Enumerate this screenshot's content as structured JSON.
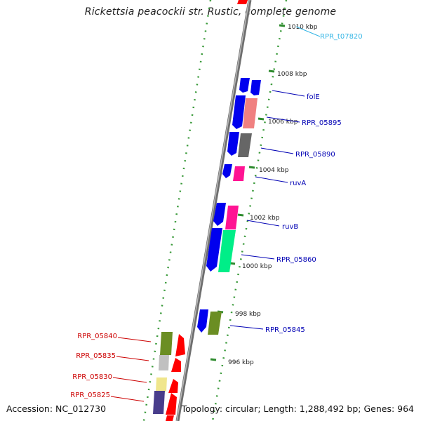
{
  "title": "Rickettsia peacockii str. Rustic, complete genome",
  "footer": {
    "accession": "Accession: NC_012730",
    "summary": "Topology: circular; Length: 1,288,492 bp; Genes: 964"
  },
  "colors": {
    "backbone": "#8c8c8c",
    "tick": "#2e8b2e",
    "forward_label": "#0000b4",
    "reverse_label": "#cc0000",
    "trna_label": "#33b5e5"
  },
  "ticks": [
    {
      "label": "1010 kbp",
      "kbp": 1010
    },
    {
      "label": "1008 kbp",
      "kbp": 1008
    },
    {
      "label": "1006 kbp",
      "kbp": 1006
    },
    {
      "label": "1004 kbp",
      "kbp": 1004
    },
    {
      "label": "1002 kbp",
      "kbp": 1002
    },
    {
      "label": "1000 kbp",
      "kbp": 1000
    },
    {
      "label": "998 kbp",
      "kbp": 998
    },
    {
      "label": "996 kbp",
      "kbp": 996
    }
  ],
  "gene_labels": [
    {
      "label": "RPR_t07820",
      "strand": "trna"
    },
    {
      "label": "folE",
      "strand": "forward"
    },
    {
      "label": "RPR_05895",
      "strand": "forward"
    },
    {
      "label": "RPR_05890",
      "strand": "forward"
    },
    {
      "label": "ruvA",
      "strand": "forward"
    },
    {
      "label": "ruvB",
      "strand": "forward"
    },
    {
      "label": "RPR_05860",
      "strand": "forward"
    },
    {
      "label": "RPR_05845",
      "strand": "forward"
    },
    {
      "label": "RPR_05840",
      "strand": "reverse"
    },
    {
      "label": "RPR_05835",
      "strand": "reverse"
    },
    {
      "label": "RPR_05830",
      "strand": "reverse"
    },
    {
      "label": "RPR_05825",
      "strand": "reverse"
    }
  ]
}
